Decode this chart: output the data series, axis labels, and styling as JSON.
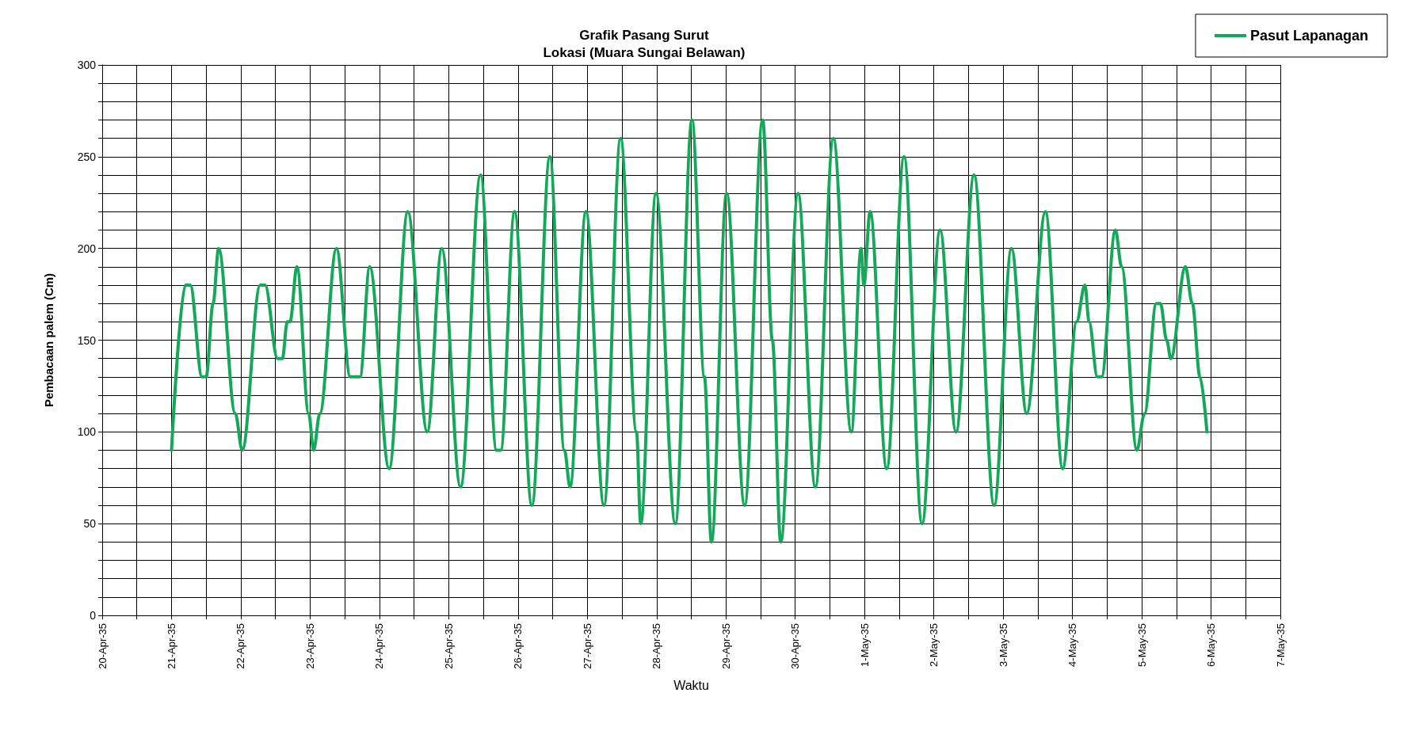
{
  "chart_data": {
    "type": "line",
    "title": "Grafik Pasang Surut\nLokasi (Muara Sungai Belawan)",
    "xlabel": "Waktu",
    "ylabel": "Pembacaan palem (Cm)",
    "series": [
      {
        "name": "Pasut Lapanagan",
        "color": "#13a85a",
        "x": [
          "1935-04-21T00:00",
          "1935-04-21T04:48",
          "1935-04-21T06:29",
          "1935-04-21T10:34",
          "1935-04-21T12:00",
          "1935-04-21T14:24",
          "1935-04-21T16:19",
          "1935-04-21T22:05",
          "1935-04-22T00:29",
          "1935-04-22T06:43",
          "1935-04-22T08:24",
          "1935-04-22T12:43",
          "1935-04-22T14:24",
          "1935-04-22T16:05",
          "1935-04-22T17:02",
          "1935-04-22T19:26",
          "1935-04-22T23:31",
          "1935-04-23T01:12",
          "1935-04-23T03:22",
          "1935-04-23T09:07",
          "1935-04-23T13:55",
          "1935-04-23T17:17",
          "1935-04-23T20:38",
          "1935-04-24T03:22",
          "1935-04-24T09:50",
          "1935-04-24T16:34",
          "1935-04-24T21:36",
          "1935-04-25T04:05",
          "1935-04-25T11:02",
          "1935-04-25T16:34",
          "1935-04-25T18:00",
          "1935-04-25T22:48",
          "1935-04-26T04:48",
          "1935-04-26T11:02",
          "1935-04-26T16:05",
          "1935-04-26T18:00",
          "1935-04-26T23:31",
          "1935-04-27T05:46",
          "1935-04-27T11:31",
          "1935-04-27T17:02",
          "1935-04-27T18:29",
          "1935-04-27T23:46",
          "1935-04-28T06:29",
          "1935-04-28T12:14",
          "1935-04-28T16:34",
          "1935-04-28T18:58",
          "1935-04-29T00:14",
          "1935-04-29T06:29",
          "1935-04-29T12:43",
          "1935-04-29T16:05",
          "1935-04-29T18:58",
          "1935-04-30T00:58",
          "1935-04-30T06:58",
          "1935-04-30T13:12",
          "1935-04-30T19:26",
          "1935-04-30T22:48",
          "1935-04-30T23:46",
          "1935-05-01T01:55",
          "1935-05-01T07:41",
          "1935-05-01T13:41",
          "1935-05-01T19:55",
          "1935-05-02T02:10",
          "1935-05-02T07:41",
          "1935-05-02T13:55",
          "1935-05-02T20:53",
          "1935-05-03T02:53",
          "1935-05-03T08:10",
          "1935-05-03T14:38",
          "1935-05-03T20:38",
          "1935-05-04T01:26",
          "1935-05-04T04:19",
          "1935-05-04T05:46",
          "1935-05-04T08:38",
          "1935-05-04T10:05",
          "1935-05-04T14:53",
          "1935-05-04T17:02",
          "1935-05-04T22:19",
          "1935-05-05T00:58",
          "1935-05-05T05:02",
          "1935-05-05T06:29",
          "1935-05-05T08:38",
          "1935-05-05T10:05",
          "1935-05-05T15:07",
          "1935-05-05T17:31",
          "1935-05-05T20:10",
          "1935-05-05T22:34"
        ],
        "values": [
          90,
          180,
          180,
          130,
          130,
          170,
          200,
          110,
          90,
          180,
          180,
          140,
          140,
          160,
          160,
          190,
          110,
          90,
          110,
          200,
          130,
          130,
          190,
          80,
          220,
          100,
          200,
          70,
          240,
          90,
          90,
          220,
          60,
          250,
          90,
          70,
          220,
          60,
          260,
          100,
          50,
          230,
          50,
          270,
          130,
          40,
          230,
          60,
          270,
          150,
          40,
          230,
          70,
          260,
          100,
          200,
          180,
          220,
          80,
          250,
          50,
          210,
          100,
          240,
          60,
          200,
          110,
          220,
          80,
          160,
          180,
          160,
          130,
          130,
          210,
          190,
          90,
          110,
          170,
          170,
          150,
          140,
          190,
          170,
          130,
          100
        ]
      }
    ],
    "xlim": [
      "1935-04-20",
      "1935-05-07"
    ],
    "xticks": [
      {
        "value": "1935-04-20",
        "label": "20-Apr-35"
      },
      {
        "value": "1935-04-20T12:00",
        "label": null
      },
      {
        "value": "1935-04-21",
        "label": "21-Apr-35"
      },
      {
        "value": "1935-04-21T12:00",
        "label": null
      },
      {
        "value": "1935-04-22",
        "label": "22-Apr-35"
      },
      {
        "value": "1935-04-22T12:00",
        "label": null
      },
      {
        "value": "1935-04-23",
        "label": "23-Apr-35"
      },
      {
        "value": "1935-04-23T12:00",
        "label": null
      },
      {
        "value": "1935-04-24",
        "label": "24-Apr-35"
      },
      {
        "value": "1935-04-24T12:00",
        "label": null
      },
      {
        "value": "1935-04-25",
        "label": "25-Apr-35"
      },
      {
        "value": "1935-04-25T12:00",
        "label": null
      },
      {
        "value": "1935-04-26",
        "label": "26-Apr-35"
      },
      {
        "value": "1935-04-26T12:00",
        "label": null
      },
      {
        "value": "1935-04-27",
        "label": "27-Apr-35"
      },
      {
        "value": "1935-04-27T12:00",
        "label": null
      },
      {
        "value": "1935-04-28",
        "label": "28-Apr-35"
      },
      {
        "value": "1935-04-28T12:00",
        "label": null
      },
      {
        "value": "1935-04-29",
        "label": "29-Apr-35"
      },
      {
        "value": "1935-04-29T12:00",
        "label": null
      },
      {
        "value": "1935-04-30",
        "label": "30-Apr-35"
      },
      {
        "value": "1935-04-30T12:00",
        "label": null
      },
      {
        "value": "1935-05-01",
        "label": "1-May-35"
      },
      {
        "value": "1935-05-01T12:00",
        "label": null
      },
      {
        "value": "1935-05-02",
        "label": "2-May-35"
      },
      {
        "value": "1935-05-02T12:00",
        "label": null
      },
      {
        "value": "1935-05-03",
        "label": "3-May-35"
      },
      {
        "value": "1935-05-03T12:00",
        "label": null
      },
      {
        "value": "1935-05-04",
        "label": "4-May-35"
      },
      {
        "value": "1935-05-04T12:00",
        "label": null
      },
      {
        "value": "1935-05-05",
        "label": "5-May-35"
      },
      {
        "value": "1935-05-05T12:00",
        "label": null
      },
      {
        "value": "1935-05-06",
        "label": "6-May-35"
      },
      {
        "value": "1935-05-06T12:00",
        "label": null
      },
      {
        "value": "1935-05-07",
        "label": "7-May-35"
      }
    ],
    "ylim": [
      0,
      300
    ],
    "yticks": [
      0,
      {
        "value": 10,
        "label": null
      },
      {
        "value": 20,
        "label": null
      },
      {
        "value": 30,
        "label": null
      },
      {
        "value": 40,
        "label": null
      },
      50,
      {
        "value": 60,
        "label": null
      },
      {
        "value": 70,
        "label": null
      },
      {
        "value": 80,
        "label": null
      },
      {
        "value": 90,
        "label": null
      },
      100,
      {
        "value": 110,
        "label": null
      },
      {
        "value": 120,
        "label": null
      },
      {
        "value": 130,
        "label": null
      },
      {
        "value": 140,
        "label": null
      },
      150,
      {
        "value": 160,
        "label": null
      },
      {
        "value": 170,
        "label": null
      },
      {
        "value": 180,
        "label": null
      },
      {
        "value": 190,
        "label": null
      },
      200,
      {
        "value": 210,
        "label": null
      },
      {
        "value": 220,
        "label": null
      },
      {
        "value": 230,
        "label": null
      },
      {
        "value": 240,
        "label": null
      },
      250,
      {
        "value": 260,
        "label": null
      },
      {
        "value": 270,
        "label": null
      },
      {
        "value": 280,
        "label": null
      },
      {
        "value": 290,
        "label": null
      },
      300
    ],
    "grid": true,
    "legend": "top right",
    "marker": "none",
    "line_style": "solid"
  }
}
